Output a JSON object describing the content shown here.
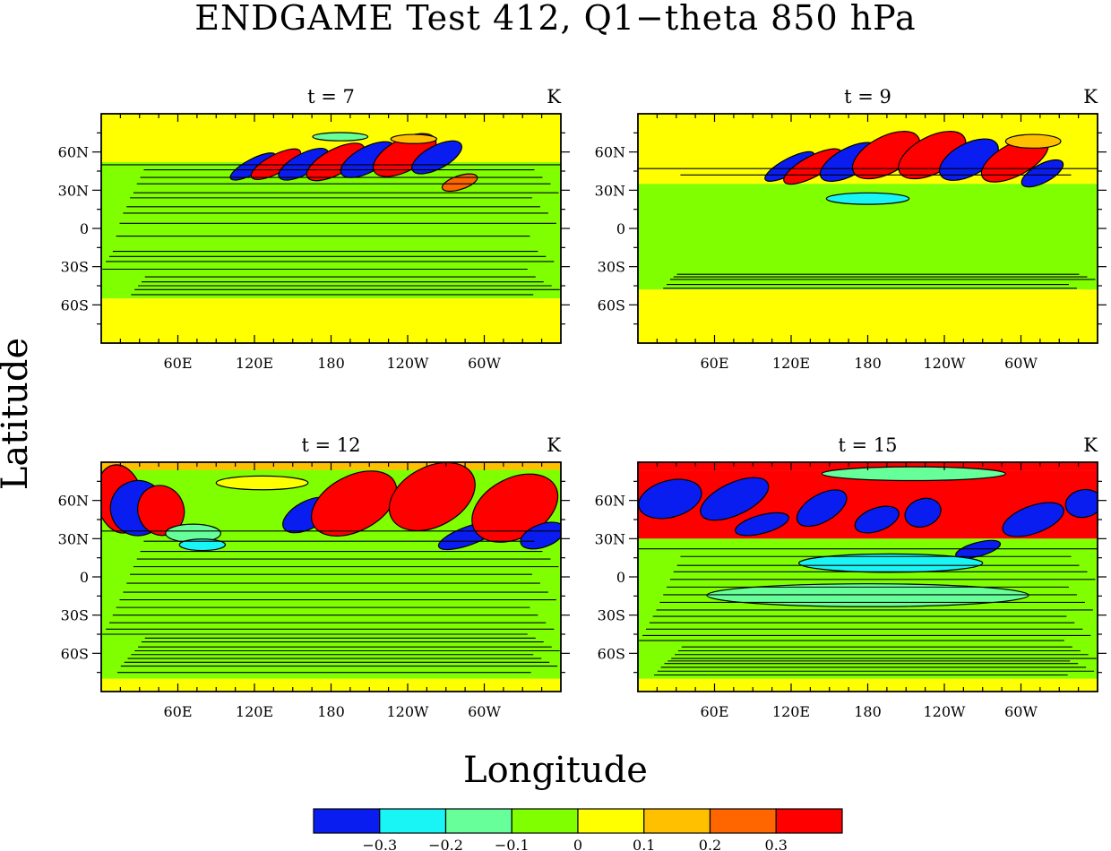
{
  "title": "ENDGAME Test 412, Q1−theta 850 hPa",
  "xlabel": "Longitude",
  "ylabel": "Latitude",
  "chart_data": {
    "type": "heatmap",
    "title": "ENDGAME Test 412, Q1−theta 850 hPa",
    "xlabel": "Longitude",
    "ylabel": "Latitude",
    "x_ticks": [
      "60E",
      "120E",
      "180",
      "120W",
      "60W"
    ],
    "y_ticks": [
      "60N",
      "30N",
      "0",
      "30S",
      "60S"
    ],
    "units": "K",
    "colorbar": {
      "levels": [
        "−0.3",
        "−0.2",
        "−0.1",
        "0",
        "0.1",
        "0.2",
        "0.3"
      ],
      "colors": [
        "#0a1df0",
        "#19f5f5",
        "#66ff99",
        "#80ff00",
        "#ffff00",
        "#ffc000",
        "#ff6600",
        "#ff0000"
      ]
    },
    "panels": [
      {
        "label": "t = 7",
        "units": "K"
      },
      {
        "label": "t = 9",
        "units": "K"
      },
      {
        "label": "t = 12",
        "units": "K"
      },
      {
        "label": "t = 15",
        "units": "K"
      }
    ]
  }
}
